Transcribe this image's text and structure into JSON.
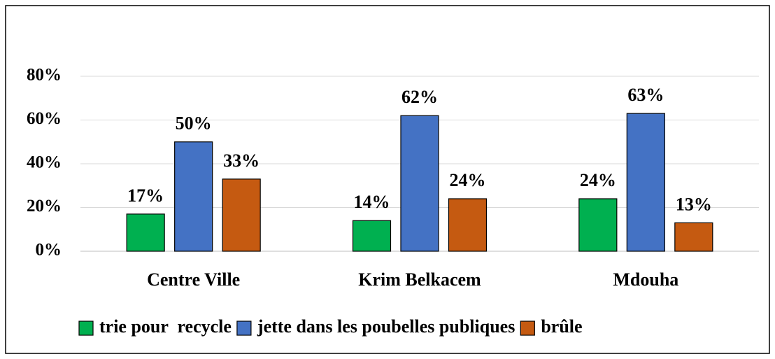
{
  "chart_data": {
    "type": "bar",
    "categories": [
      "Centre Ville",
      "Krim Belkacem",
      "Mdouha"
    ],
    "series": [
      {
        "name": "trie pour  recycle",
        "color": "#00b050",
        "values": [
          17,
          14,
          24
        ],
        "value_labels": [
          "17%",
          "14%",
          "24%"
        ]
      },
      {
        "name": "jette dans les poubelles publiques",
        "color": "#4472c4",
        "values": [
          50,
          62,
          63
        ],
        "value_labels": [
          "50%",
          "62%",
          "63%"
        ]
      },
      {
        "name": "brûle",
        "color": "#c55a11",
        "values": [
          33,
          24,
          13
        ],
        "value_labels": [
          "33%",
          "24%",
          "13%"
        ]
      }
    ],
    "ylim": [
      0,
      80
    ],
    "yticks": [
      {
        "value": 0,
        "label": "0%"
      },
      {
        "value": 20,
        "label": "20%"
      },
      {
        "value": 40,
        "label": "40%"
      },
      {
        "value": 60,
        "label": "60%"
      },
      {
        "value": 80,
        "label": "80%"
      }
    ],
    "grid": true,
    "legend": "bottom"
  }
}
